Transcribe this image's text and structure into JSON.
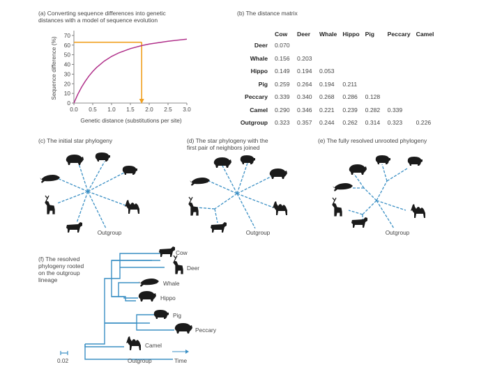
{
  "panel_a": {
    "caption": "(a) Converting sequence differences into genetic\ndistances with a model of sequence evolution",
    "xlabel": "Genetic distance (substitutions per site)",
    "ylabel": "Sequence difference (%)",
    "xticks": [
      "0.0",
      "0.5",
      "1.0",
      "1.5",
      "2.0",
      "2.5",
      "3.0"
    ],
    "yticks": [
      "0",
      "10",
      "20",
      "30",
      "40",
      "50",
      "60",
      "70"
    ],
    "curve_color": "#b0308a",
    "guide_color": "#f0a020",
    "chart_data": {
      "type": "line",
      "xlabel": "Genetic distance (substitutions per site)",
      "ylabel": "Sequence difference (%)",
      "xlim": [
        0,
        3.0
      ],
      "ylim": [
        0,
        75
      ],
      "series": [
        {
          "x": [
            0,
            0.1,
            0.2,
            0.3,
            0.4,
            0.5,
            0.6,
            0.8,
            1.0,
            1.2,
            1.5,
            1.8,
            2.0,
            2.5,
            3.0
          ],
          "y": [
            0,
            8.8,
            16.2,
            22.5,
            28.0,
            32.7,
            36.7,
            43.3,
            48.3,
            52.1,
            56.4,
            59.5,
            61.1,
            64.0,
            66.2
          ]
        }
      ],
      "guide": {
        "x": 1.8,
        "y": 63
      }
    }
  },
  "panel_b": {
    "caption": "(b) The distance matrix",
    "columns": [
      "Cow",
      "Deer",
      "Whale",
      "Hippo",
      "Pig",
      "Peccary",
      "Camel"
    ],
    "rows": [
      {
        "label": "Deer",
        "values": [
          "0.070"
        ]
      },
      {
        "label": "Whale",
        "values": [
          "0.156",
          "0.203"
        ]
      },
      {
        "label": "Hippo",
        "values": [
          "0.149",
          "0.194",
          "0.053"
        ]
      },
      {
        "label": "Pig",
        "values": [
          "0.259",
          "0.264",
          "0.194",
          "0.211"
        ]
      },
      {
        "label": "Peccary",
        "values": [
          "0.339",
          "0.340",
          "0.268",
          "0.286",
          "0.128"
        ]
      },
      {
        "label": "Camel",
        "values": [
          "0.290",
          "0.346",
          "0.221",
          "0.239",
          "0.282",
          "0.339"
        ]
      },
      {
        "label": "Outgroup",
        "values": [
          "0.323",
          "0.357",
          "0.244",
          "0.262",
          "0.314",
          "0.323",
          "0.226"
        ]
      }
    ]
  },
  "panel_c": {
    "caption": "(c) The initial star phylogeny",
    "outgroup": "Outgroup"
  },
  "panel_d": {
    "caption": "(d) The star phylogeny with the\nfirst pair of neighbors joined",
    "outgroup": "Outgroup"
  },
  "panel_e": {
    "caption": "(e) The fully resolved unrooted phylogeny",
    "outgroup": "Outgroup"
  },
  "panel_f": {
    "caption": "(f) The resolved\nphylogeny rooted\non the outgroup\nlineage",
    "taxa": [
      "Cow",
      "Deer",
      "Whale",
      "Hippo",
      "Pig",
      "Peccary",
      "Camel",
      "Outgroup"
    ],
    "scale_label": "0.02",
    "time_label": "Time"
  },
  "colors": {
    "branch": "#3a8fc4",
    "branch_dark": "#2a6a99",
    "silhouette": "#1a1a1a",
    "text": "#444444"
  }
}
